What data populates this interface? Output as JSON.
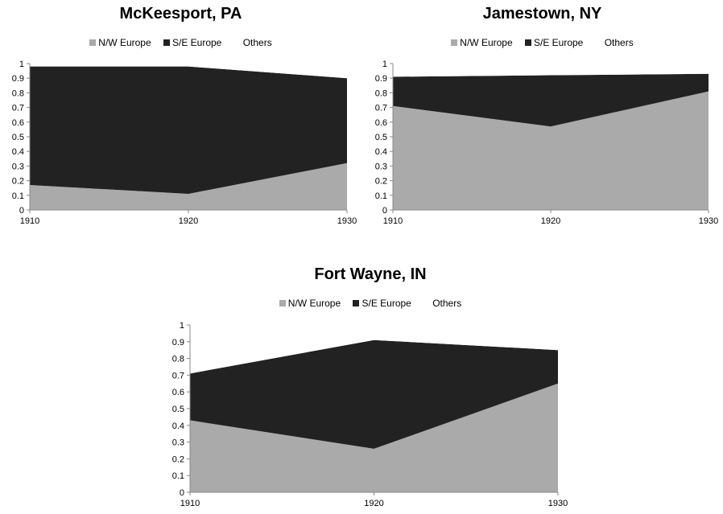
{
  "colors": {
    "nw_europe": "#aaaaaa",
    "se_europe": "#222222",
    "others": "#ffffff",
    "axis": "#888888"
  },
  "chart_data": [
    {
      "type": "area",
      "title": "McKeesport, PA",
      "x": [
        "1910",
        "1920",
        "1930"
      ],
      "ylim": [
        0,
        1
      ],
      "yticks": [
        "0",
        "0.1",
        "0.2",
        "0.3",
        "0.4",
        "0.5",
        "0.6",
        "0.7",
        "0.8",
        "0.9",
        "1"
      ],
      "legend_position": "top",
      "grid": false,
      "stacked": true,
      "series": [
        {
          "name": "N/W Europe",
          "values": [
            0.17,
            0.11,
            0.32
          ]
        },
        {
          "name": "S/E Europe",
          "values": [
            0.81,
            0.87,
            0.58
          ]
        },
        {
          "name": "Others",
          "values": [
            0.02,
            0.02,
            0.1
          ]
        }
      ]
    },
    {
      "type": "area",
      "title": "Jamestown, NY",
      "x": [
        "1910",
        "1920",
        "1930"
      ],
      "ylim": [
        0,
        1
      ],
      "yticks": [
        "0",
        "0.1",
        "0.2",
        "0.3",
        "0.4",
        "0.5",
        "0.6",
        "0.7",
        "0.8",
        "0.9",
        "1"
      ],
      "legend_position": "top",
      "grid": false,
      "stacked": true,
      "series": [
        {
          "name": "N/W Europe",
          "values": [
            0.71,
            0.57,
            0.81
          ]
        },
        {
          "name": "S/E Europe",
          "values": [
            0.2,
            0.35,
            0.12
          ]
        },
        {
          "name": "Others",
          "values": [
            0.09,
            0.08,
            0.07
          ]
        }
      ]
    },
    {
      "type": "area",
      "title": "Fort Wayne, IN",
      "x": [
        "1910",
        "1920",
        "1930"
      ],
      "ylim": [
        0,
        1
      ],
      "yticks": [
        "0",
        "0.1",
        "0.2",
        "0.3",
        "0.4",
        "0.5",
        "0.6",
        "0.7",
        "0.8",
        "0.9",
        "1"
      ],
      "legend_position": "top",
      "grid": false,
      "stacked": true,
      "series": [
        {
          "name": "N/W Europe",
          "values": [
            0.43,
            0.26,
            0.65
          ]
        },
        {
          "name": "S/E Europe",
          "values": [
            0.28,
            0.65,
            0.2
          ]
        },
        {
          "name": "Others",
          "values": [
            0.29,
            0.09,
            0.15
          ]
        }
      ]
    }
  ]
}
